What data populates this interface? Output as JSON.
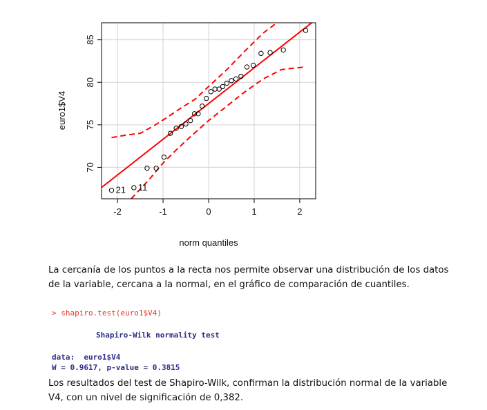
{
  "chart_data": {
    "type": "scatter",
    "subtype": "qq-plot",
    "title": "",
    "xlabel": "norm quantiles",
    "ylabel": "euro1$V4",
    "xlim": [
      -2.35,
      2.35
    ],
    "ylim": [
      66.3,
      87.0
    ],
    "xticks": [
      "-2",
      "-1",
      "0",
      "1",
      "2"
    ],
    "yticks": [
      "70",
      "75",
      "80",
      "85"
    ],
    "grid": true,
    "points": [
      {
        "x": -2.13,
        "y": 67.3
      },
      {
        "x": -1.64,
        "y": 67.6
      },
      {
        "x": -1.35,
        "y": 69.9
      },
      {
        "x": -1.15,
        "y": 69.9
      },
      {
        "x": -0.98,
        "y": 71.2
      },
      {
        "x": -0.84,
        "y": 74.0
      },
      {
        "x": -0.71,
        "y": 74.6
      },
      {
        "x": -0.6,
        "y": 74.8
      },
      {
        "x": -0.5,
        "y": 75.1
      },
      {
        "x": -0.4,
        "y": 75.5
      },
      {
        "x": -0.31,
        "y": 76.3
      },
      {
        "x": -0.23,
        "y": 76.3
      },
      {
        "x": -0.14,
        "y": 77.2
      },
      {
        "x": -0.05,
        "y": 78.1
      },
      {
        "x": 0.05,
        "y": 78.9
      },
      {
        "x": 0.14,
        "y": 79.2
      },
      {
        "x": 0.23,
        "y": 79.2
      },
      {
        "x": 0.31,
        "y": 79.5
      },
      {
        "x": 0.4,
        "y": 79.9
      },
      {
        "x": 0.5,
        "y": 80.2
      },
      {
        "x": 0.6,
        "y": 80.4
      },
      {
        "x": 0.71,
        "y": 80.7
      },
      {
        "x": 0.84,
        "y": 81.8
      },
      {
        "x": 0.98,
        "y": 82.0
      },
      {
        "x": 1.15,
        "y": 83.4
      },
      {
        "x": 1.35,
        "y": 83.5
      },
      {
        "x": 1.64,
        "y": 83.8
      },
      {
        "x": 2.13,
        "y": 86.1
      }
    ],
    "point_labels": [
      {
        "point_index": 0,
        "label": "21"
      },
      {
        "point_index": 1,
        "label": "11"
      }
    ],
    "reference_line": {
      "intercept": 77.5,
      "slope": 4.2
    },
    "confidence_band": {
      "lower": [
        [
          -1.7,
          66.3
        ],
        [
          -1.3,
          68.6
        ],
        [
          -1.0,
          70.5
        ],
        [
          -0.7,
          72.1
        ],
        [
          -0.4,
          73.6
        ],
        [
          0.0,
          75.5
        ],
        [
          0.4,
          77.2
        ],
        [
          0.8,
          78.9
        ],
        [
          1.2,
          80.4
        ],
        [
          1.6,
          81.5
        ],
        [
          2.1,
          81.8
        ]
      ],
      "upper": [
        [
          -2.13,
          73.5
        ],
        [
          -1.8,
          73.8
        ],
        [
          -1.5,
          74.0
        ],
        [
          -1.2,
          74.9
        ],
        [
          -0.9,
          75.9
        ],
        [
          -0.6,
          77.0
        ],
        [
          -0.3,
          78.0
        ],
        [
          0.0,
          79.5
        ],
        [
          0.4,
          81.5
        ],
        [
          0.8,
          83.7
        ],
        [
          1.2,
          85.8
        ],
        [
          1.5,
          87.0
        ]
      ]
    },
    "colors": {
      "line": "#ff0000",
      "points": "#000000",
      "grid": "#d3d3d3"
    }
  },
  "text": {
    "paragraph1": "La cercanía de los puntos a la recta nos permite observar una distribución de los datos de la variable, cercana a la normal, en el gráfico de comparación de cuantiles.",
    "command": "> shapiro.test(euro1$V4)",
    "test_title": "Shapiro-Wilk normality test",
    "data_line": "data:  euro1$V4",
    "stats_line": "W = 0.9617, p-value = 0.3815",
    "paragraph2": "Los resultados del test de Shapiro-Wilk, confirman la distribución normal de la variable V4, con un nivel de significación de 0,382."
  }
}
